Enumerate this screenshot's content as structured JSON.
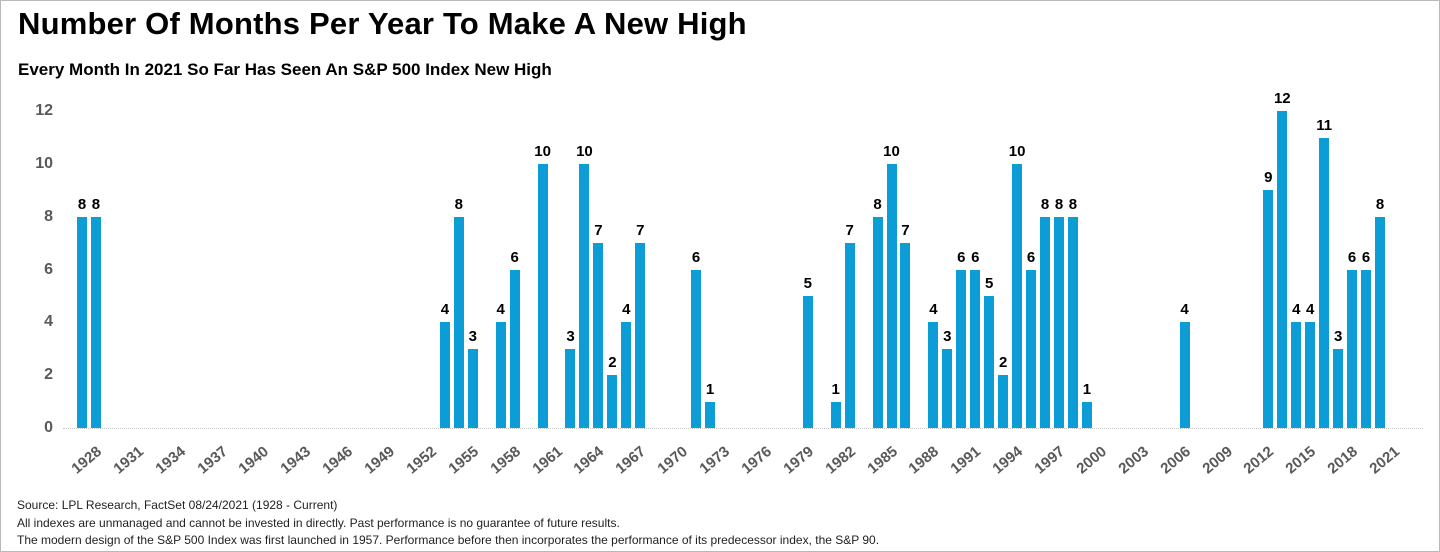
{
  "header": {
    "title": "Number Of Months Per Year To Make A New High",
    "subtitle": "Every Month In 2021 So Far Has Seen An S&P 500 Index New High"
  },
  "chart_data": {
    "type": "bar",
    "title": "Number Of Months Per Year To Make A New High",
    "subtitle": "Every Month In 2021 So Far Has Seen An S&P 500 Index New High",
    "xlabel": "",
    "ylabel": "",
    "ylim": [
      0,
      12
    ],
    "yticks": [
      0,
      2,
      4,
      6,
      8,
      10,
      12
    ],
    "xticks": [
      1928,
      1931,
      1934,
      1937,
      1940,
      1943,
      1946,
      1949,
      1952,
      1955,
      1958,
      1961,
      1964,
      1967,
      1970,
      1973,
      1976,
      1979,
      1982,
      1985,
      1988,
      1991,
      1994,
      1997,
      2000,
      2003,
      2006,
      2009,
      2012,
      2015,
      2018,
      2021
    ],
    "x_range": [
      1928,
      2021
    ],
    "grid": "off",
    "legend": "none",
    "bar_color": "#0c9cd6",
    "axis_label_color": "#595959",
    "points": [
      {
        "year": 1928,
        "months": 8
      },
      {
        "year": 1929,
        "months": 8
      },
      {
        "year": 1954,
        "months": 4
      },
      {
        "year": 1955,
        "months": 8
      },
      {
        "year": 1956,
        "months": 3
      },
      {
        "year": 1958,
        "months": 4
      },
      {
        "year": 1959,
        "months": 6
      },
      {
        "year": 1961,
        "months": 10
      },
      {
        "year": 1963,
        "months": 3
      },
      {
        "year": 1964,
        "months": 10
      },
      {
        "year": 1965,
        "months": 7
      },
      {
        "year": 1966,
        "months": 2
      },
      {
        "year": 1967,
        "months": 4
      },
      {
        "year": 1968,
        "months": 7
      },
      {
        "year": 1972,
        "months": 6
      },
      {
        "year": 1973,
        "months": 1
      },
      {
        "year": 1980,
        "months": 5
      },
      {
        "year": 1982,
        "months": 1
      },
      {
        "year": 1983,
        "months": 7
      },
      {
        "year": 1985,
        "months": 8
      },
      {
        "year": 1986,
        "months": 10
      },
      {
        "year": 1987,
        "months": 7
      },
      {
        "year": 1989,
        "months": 4
      },
      {
        "year": 1990,
        "months": 3
      },
      {
        "year": 1991,
        "months": 6
      },
      {
        "year": 1992,
        "months": 6
      },
      {
        "year": 1993,
        "months": 5
      },
      {
        "year": 1994,
        "months": 2
      },
      {
        "year": 1995,
        "months": 10
      },
      {
        "year": 1996,
        "months": 6
      },
      {
        "year": 1997,
        "months": 8
      },
      {
        "year": 1998,
        "months": 8
      },
      {
        "year": 1999,
        "months": 8
      },
      {
        "year": 2000,
        "months": 1
      },
      {
        "year": 2007,
        "months": 4
      },
      {
        "year": 2013,
        "months": 9
      },
      {
        "year": 2014,
        "months": 12
      },
      {
        "year": 2015,
        "months": 4
      },
      {
        "year": 2016,
        "months": 4
      },
      {
        "year": 2017,
        "months": 11
      },
      {
        "year": 2018,
        "months": 3
      },
      {
        "year": 2019,
        "months": 6
      },
      {
        "year": 2020,
        "months": 6
      },
      {
        "year": 2021,
        "months": 8
      }
    ]
  },
  "footer": {
    "lines": [
      "Source: LPL Research, FactSet 08/24/2021 (1928 - Current)",
      "All indexes are unmanaged and cannot be invested in directly. Past performance is no guarantee of future results.",
      "The modern design of the S&P 500 Index was first launched in 1957. Performance before then incorporates the performance of its predecessor index, the S&P 90."
    ]
  }
}
